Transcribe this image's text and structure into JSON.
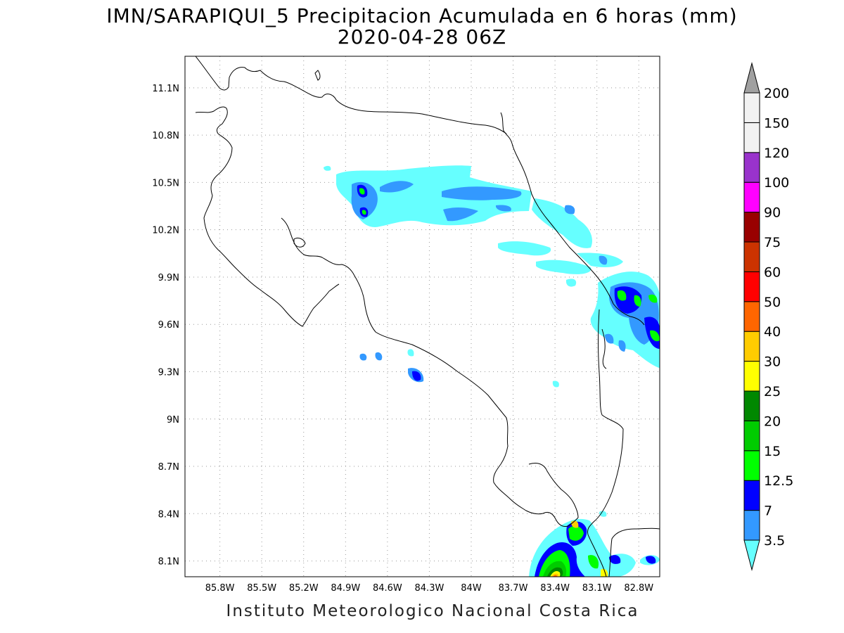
{
  "title": {
    "line1": "IMN/SARAPIQUI_5 Precipitacion Acumulada en 6 horas (mm)",
    "line2": "2020-04-28 06Z"
  },
  "footer": "Instituto Meteorologico Nacional Costa Rica",
  "map": {
    "lon_range": [
      -86.05,
      -82.65
    ],
    "lat_range": [
      8.0,
      11.3
    ],
    "lon_ticks": [
      {
        "value": -85.8,
        "label": "85.8W"
      },
      {
        "value": -85.5,
        "label": "85.5W"
      },
      {
        "value": -85.2,
        "label": "85.2W"
      },
      {
        "value": -84.9,
        "label": "84.9W"
      },
      {
        "value": -84.6,
        "label": "84.6W"
      },
      {
        "value": -84.3,
        "label": "84.3W"
      },
      {
        "value": -84.0,
        "label": "84W"
      },
      {
        "value": -83.7,
        "label": "83.7W"
      },
      {
        "value": -83.4,
        "label": "83.4W"
      },
      {
        "value": -83.1,
        "label": "83.1W"
      },
      {
        "value": -82.8,
        "label": "82.8W"
      }
    ],
    "lat_ticks": [
      {
        "value": 11.1,
        "label": "11.1N"
      },
      {
        "value": 10.8,
        "label": "10.8N"
      },
      {
        "value": 10.5,
        "label": "10.5N"
      },
      {
        "value": 10.2,
        "label": "10.2N"
      },
      {
        "value": 9.9,
        "label": "9.9N"
      },
      {
        "value": 9.6,
        "label": "9.6N"
      },
      {
        "value": 9.3,
        "label": "9.3N"
      },
      {
        "value": 9.0,
        "label": "9N"
      },
      {
        "value": 8.7,
        "label": "8.7N"
      },
      {
        "value": 8.4,
        "label": "8.4N"
      },
      {
        "value": 8.1,
        "label": "8.1N"
      }
    ],
    "grid": true
  },
  "colorbar": {
    "levels": [
      {
        "label": "3.5",
        "color": "#66ffff"
      },
      {
        "label": "7",
        "color": "#3399ff"
      },
      {
        "label": "12.5",
        "color": "#0000ff"
      },
      {
        "label": "15",
        "color": "#00ff00"
      },
      {
        "label": "20",
        "color": "#00cc00"
      },
      {
        "label": "25",
        "color": "#008800"
      },
      {
        "label": "30",
        "color": "#ffff00"
      },
      {
        "label": "40",
        "color": "#ffcc00"
      },
      {
        "label": "50",
        "color": "#ff6600"
      },
      {
        "label": "60",
        "color": "#ff0000"
      },
      {
        "label": "75",
        "color": "#cc3300"
      },
      {
        "label": "90",
        "color": "#990000"
      },
      {
        "label": "100",
        "color": "#ff00ff"
      },
      {
        "label": "120",
        "color": "#9933cc"
      },
      {
        "label": "150",
        "color": "#f2f2f2"
      },
      {
        "label": "200",
        "color": "#a0a0a0"
      }
    ]
  }
}
